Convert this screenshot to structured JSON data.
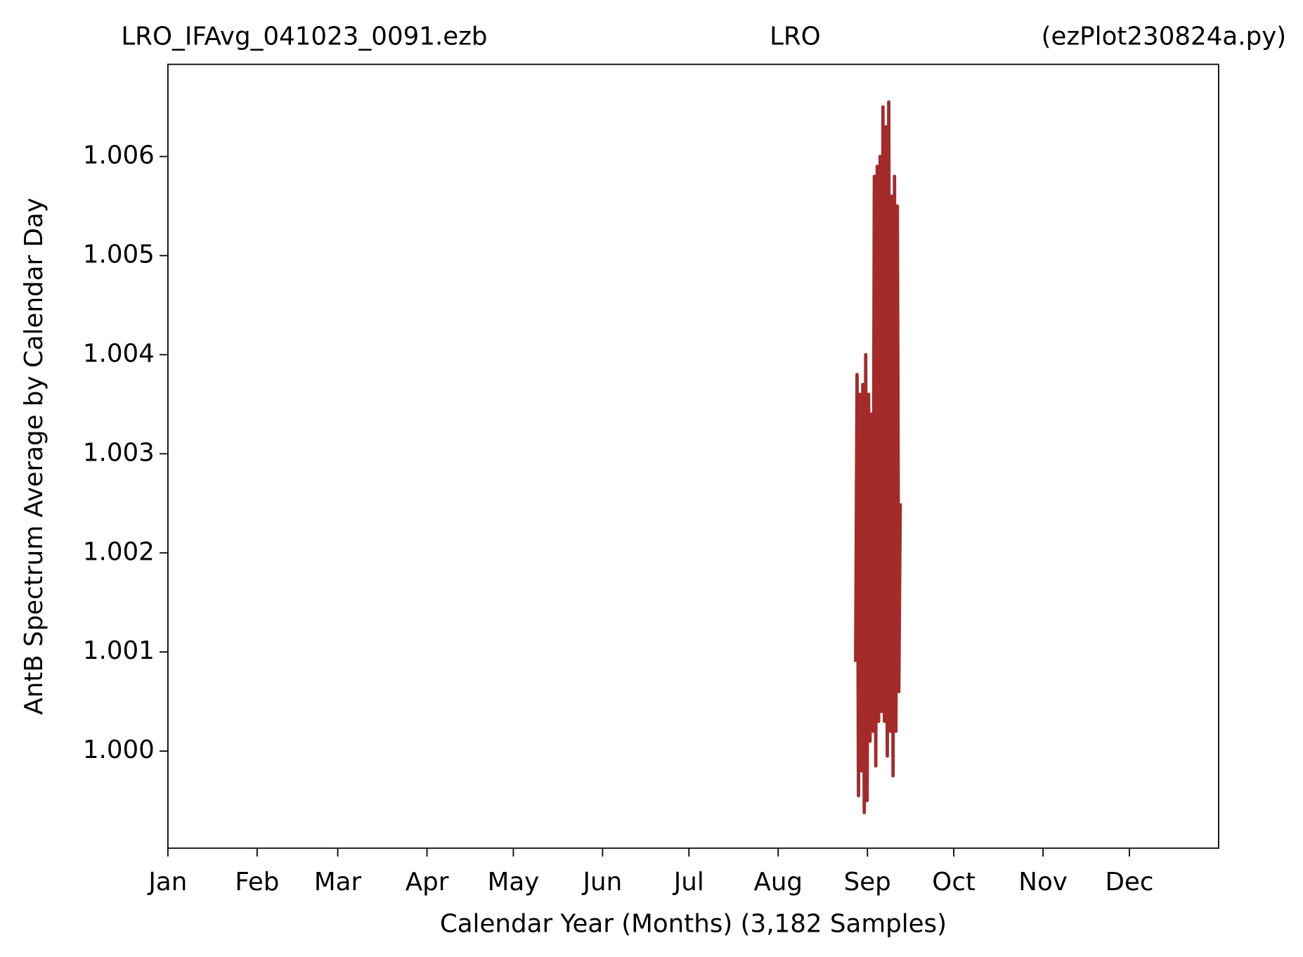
{
  "chart_data": {
    "type": "line",
    "title": [
      "LRO_IFAvg_041023_0091.ezb",
      "LRO",
      "(ezPlot230824a.py)"
    ],
    "x_label": "Calendar Year (Months) (3,182 Samples)",
    "y_label": "AntB Spectrum Average by Calendar Day",
    "xlim": [
      0,
      365
    ],
    "ylim": [
      0.99902,
      1.00693
    ],
    "xticks": [
      {
        "value": 0,
        "label": "Jan"
      },
      {
        "value": 31,
        "label": "Feb"
      },
      {
        "value": 59,
        "label": "Mar"
      },
      {
        "value": 90,
        "label": "Apr"
      },
      {
        "value": 120,
        "label": "May"
      },
      {
        "value": 151,
        "label": "Jun"
      },
      {
        "value": 181,
        "label": "Jul"
      },
      {
        "value": 212,
        "label": "Aug"
      },
      {
        "value": 243,
        "label": "Sep"
      },
      {
        "value": 273,
        "label": "Oct"
      },
      {
        "value": 304,
        "label": "Nov"
      },
      {
        "value": 334,
        "label": "Dec"
      }
    ],
    "yticks": [
      {
        "value": 1.0,
        "label": "1.000"
      },
      {
        "value": 1.001,
        "label": "1.001"
      },
      {
        "value": 1.002,
        "label": "1.002"
      },
      {
        "value": 1.003,
        "label": "1.003"
      },
      {
        "value": 1.004,
        "label": "1.004"
      },
      {
        "value": 1.005,
        "label": "1.005"
      },
      {
        "value": 1.006,
        "label": "1.006"
      }
    ],
    "grid": false,
    "series": [
      {
        "color": "#a52a2a",
        "x": [
          238.9,
          239.4,
          239.9,
          240.4,
          240.9,
          241.4,
          241.9,
          242.4,
          242.9,
          243.4,
          243.9,
          244.4,
          244.9,
          245.4,
          245.9,
          246.4,
          246.9,
          247.4,
          247.9,
          248.4,
          248.9,
          249.4,
          249.9,
          250.4,
          250.9,
          251.4,
          251.9,
          252.4,
          252.9,
          253.4,
          253.9,
          254.4
        ],
        "values": [
          1.0009,
          1.0038,
          0.99955,
          1.0036,
          0.9998,
          1.0037,
          0.99938,
          1.004,
          0.9995,
          1.0036,
          1.0001,
          1.0034,
          1.0002,
          1.0058,
          0.99985,
          1.0059,
          1.0003,
          1.006,
          1.0004,
          1.0065,
          1.0003,
          1.0063,
          0.99995,
          1.00655,
          1.0002,
          1.0056,
          0.99975,
          1.0058,
          1.0002,
          1.0055,
          1.0006,
          1.0025
        ]
      }
    ]
  }
}
